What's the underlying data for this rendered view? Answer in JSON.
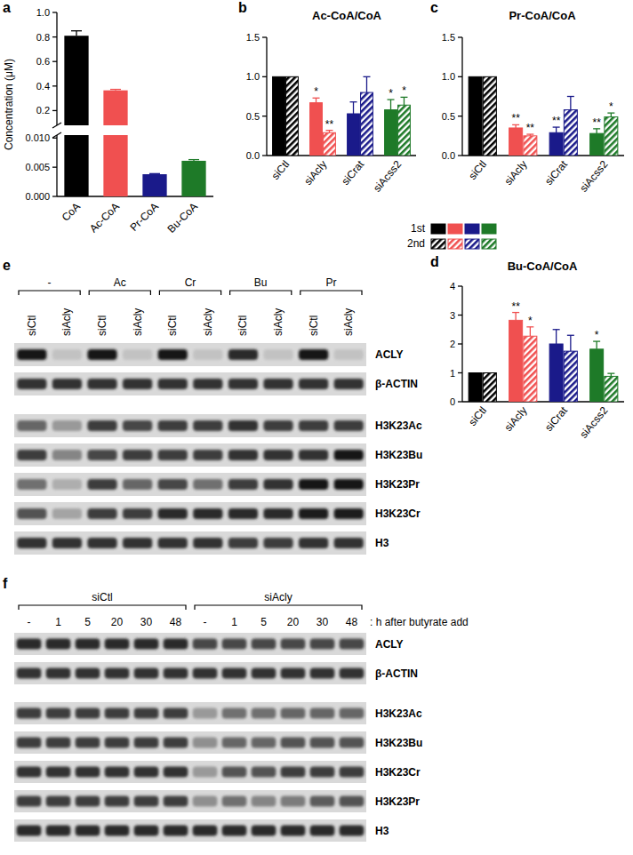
{
  "chart_data": [
    {
      "panel": "a",
      "type": "bar",
      "y_label": "Concentration (μM)",
      "categories": [
        "CoA",
        "Ac-CoA",
        "Pr-CoA",
        "Bu-CoA"
      ],
      "values": [
        0.81,
        0.365,
        0.0038,
        0.0061
      ],
      "errors": [
        0.04,
        0.008,
        0.0001,
        0.0002
      ],
      "colors": [
        "#000000",
        "#f05050",
        "#1a1a8a",
        "#1e7a28"
      ],
      "ylim": [
        0,
        1.0
      ],
      "y_break": [
        0.0105,
        0.08
      ],
      "yticks": [
        {
          "value": 0,
          "label": "0.000"
        },
        0.005,
        {
          "value": 0.01,
          "label": "0.010"
        },
        0.2,
        0.4,
        0.6,
        0.8,
        {
          "value": 1,
          "label": "1.0"
        }
      ]
    },
    {
      "panel": "b",
      "type": "bar",
      "title": "Ac-CoA/CoA",
      "categories": [
        "siCtl",
        "siAcly",
        "siCrat",
        "siAcss2"
      ],
      "series": [
        {
          "colors": [
            "#000000",
            "#f05050",
            "#1a1a8a",
            "#1e7a28"
          ],
          "values": [
            1,
            0.67,
            0.53,
            0.58
          ],
          "errors": [
            0,
            0.06,
            0.15,
            0.13
          ],
          "annotations": [
            null,
            "*",
            null,
            "*"
          ]
        },
        {
          "colors": [
            "#000000",
            "#f05050",
            "#1a1a8a",
            "#1e7a28"
          ],
          "values": [
            1,
            0.29,
            0.8,
            0.64
          ],
          "errors": [
            0,
            0.03,
            0.2,
            0.1
          ],
          "annotations": [
            null,
            "**",
            null,
            "*"
          ]
        }
      ],
      "ylim": [
        0,
        1.5
      ],
      "yticks": [
        {
          "value": 0,
          "label": "0.0"
        },
        0.5,
        {
          "value": 1,
          "label": "1.0"
        },
        1.5
      ]
    },
    {
      "panel": "c",
      "type": "bar",
      "title": "Pr-CoA/CoA",
      "categories": [
        "siCtl",
        "siAcly",
        "siCrat",
        "siAcss2"
      ],
      "series": [
        {
          "colors": [
            "#000000",
            "#f05050",
            "#1a1a8a",
            "#1e7a28"
          ],
          "values": [
            1,
            0.35,
            0.29,
            0.28
          ],
          "errors": [
            0,
            0.04,
            0.07,
            0.06
          ],
          "annotations": [
            null,
            "**",
            "**",
            "**"
          ]
        },
        {
          "colors": [
            "#000000",
            "#f05050",
            "#1a1a8a",
            "#1e7a28"
          ],
          "values": [
            1,
            0.25,
            0.58,
            0.49
          ],
          "errors": [
            0,
            0.02,
            0.17,
            0.05
          ],
          "annotations": [
            null,
            "**",
            null,
            "*"
          ]
        }
      ],
      "ylim": [
        0,
        1.5
      ],
      "yticks": [
        {
          "value": 0,
          "label": "0.0"
        },
        0.5,
        {
          "value": 1,
          "label": "1.0"
        },
        1.5
      ]
    },
    {
      "panel": "d",
      "type": "bar",
      "title": "Bu-CoA/CoA",
      "categories": [
        "siCtl",
        "siAcly",
        "siCrat",
        "siAcss2"
      ],
      "series": [
        {
          "colors": [
            "#000000",
            "#f05050",
            "#1a1a8a",
            "#1e7a28"
          ],
          "values": [
            1,
            2.82,
            2.0,
            1.82
          ],
          "errors": [
            0,
            0.27,
            0.5,
            0.27
          ],
          "annotations": [
            null,
            "**",
            null,
            "*"
          ]
        },
        {
          "colors": [
            "#000000",
            "#f05050",
            "#1a1a8a",
            "#1e7a28"
          ],
          "values": [
            1,
            2.27,
            1.75,
            0.88
          ],
          "errors": [
            0,
            0.32,
            0.55,
            0.1
          ],
          "annotations": [
            null,
            "*",
            null,
            null
          ]
        }
      ],
      "ylim": [
        0,
        4
      ],
      "yticks": [
        0,
        1,
        2,
        3,
        4
      ]
    }
  ],
  "shared_legend": {
    "labels": [
      "1st",
      "2nd"
    ]
  },
  "blots": [
    {
      "panel": "e",
      "groups": [
        "-",
        "Ac",
        "Cr",
        "Bu",
        "Pr"
      ],
      "lanes": [
        "siCtl",
        "siAcly",
        "siCtl",
        "siAcly",
        "siCtl",
        "siAcly",
        "siCtl",
        "siAcly",
        "siCtl",
        "siAcly"
      ],
      "rows": [
        {
          "label": "ACLY",
          "intensity": [
            1,
            0.15,
            1,
            0.15,
            1,
            0.15,
            0.9,
            0.15,
            1,
            0.15
          ]
        },
        {
          "label": "β-ACTIN",
          "intensity": [
            0.85,
            0.85,
            0.85,
            0.85,
            0.85,
            0.85,
            0.85,
            0.85,
            0.85,
            0.85
          ]
        },
        {
          "label": "H3K23Ac",
          "intensity": [
            0.6,
            0.35,
            0.8,
            0.75,
            0.8,
            0.8,
            0.85,
            0.8,
            0.8,
            0.8
          ]
        },
        {
          "label": "H3K23Bu",
          "intensity": [
            0.8,
            0.45,
            0.75,
            0.8,
            0.8,
            0.8,
            0.85,
            0.85,
            0.85,
            1
          ]
        },
        {
          "label": "H3K23Pr",
          "intensity": [
            0.55,
            0.25,
            0.8,
            0.6,
            0.75,
            0.55,
            0.8,
            0.85,
            1,
            1
          ]
        },
        {
          "label": "H3K23Cr",
          "intensity": [
            0.7,
            0.3,
            0.8,
            0.8,
            0.9,
            0.9,
            0.9,
            0.9,
            0.95,
            0.95
          ]
        },
        {
          "label": "H3",
          "intensity": [
            0.85,
            0.85,
            0.85,
            0.85,
            0.85,
            0.85,
            0.8,
            0.8,
            0.85,
            0.85
          ]
        }
      ]
    },
    {
      "panel": "f",
      "groups": [
        "siCtl",
        "siAcly"
      ],
      "lanes": [
        "-",
        "1",
        "5",
        "20",
        "30",
        "48",
        "-",
        "1",
        "5",
        "20",
        "30",
        "48"
      ],
      "lane_suffix": ": h after butyrate add",
      "rows": [
        {
          "label": "ACLY",
          "intensity": [
            0.9,
            0.9,
            0.9,
            0.9,
            0.9,
            0.9,
            0.75,
            0.75,
            0.75,
            0.75,
            0.75,
            0.75
          ]
        },
        {
          "label": "β-ACTIN",
          "intensity": [
            0.85,
            0.85,
            0.85,
            0.85,
            0.85,
            0.85,
            0.85,
            0.85,
            0.85,
            0.85,
            0.85,
            0.85
          ]
        },
        {
          "label": "H3K23Ac",
          "intensity": [
            0.8,
            0.8,
            0.8,
            0.8,
            0.8,
            0.8,
            0.35,
            0.55,
            0.55,
            0.6,
            0.6,
            0.6
          ]
        },
        {
          "label": "H3K23Bu",
          "intensity": [
            0.8,
            0.8,
            0.8,
            0.8,
            0.8,
            0.8,
            0.4,
            0.6,
            0.6,
            0.7,
            0.7,
            0.7
          ]
        },
        {
          "label": "H3K23Cr",
          "intensity": [
            0.85,
            0.85,
            0.85,
            0.85,
            0.85,
            0.85,
            0.35,
            0.7,
            0.7,
            0.8,
            0.8,
            0.8
          ]
        },
        {
          "label": "H3K23Pr",
          "intensity": [
            0.8,
            0.8,
            0.8,
            0.8,
            0.8,
            0.8,
            0.4,
            0.55,
            0.45,
            0.5,
            0.65,
            0.7
          ]
        },
        {
          "label": "H3",
          "intensity": [
            0.9,
            0.9,
            0.9,
            0.9,
            0.9,
            0.9,
            0.9,
            0.9,
            0.9,
            0.9,
            0.9,
            0.9
          ]
        }
      ]
    }
  ]
}
